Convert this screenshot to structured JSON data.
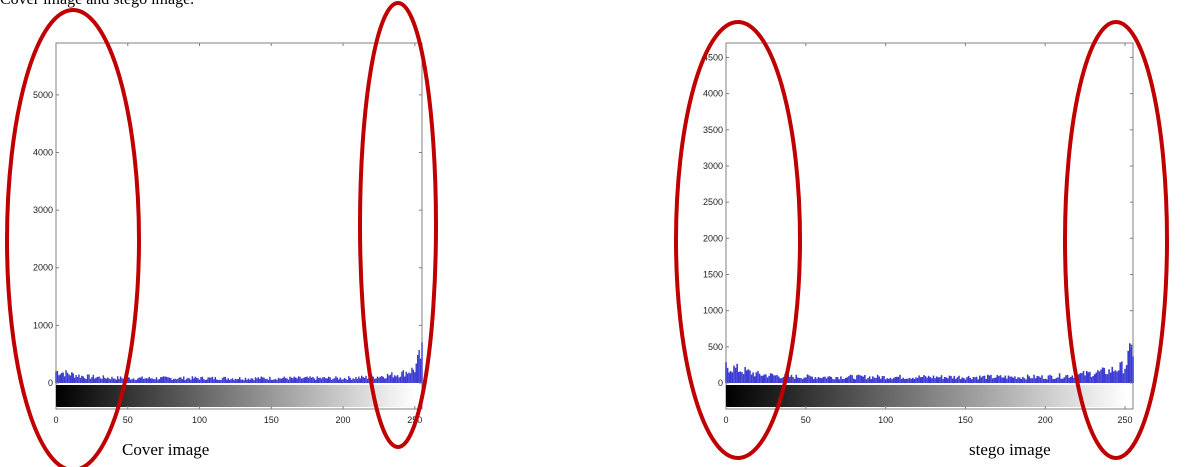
{
  "figure": {
    "top_text": "Cover image and stego image.",
    "captions": [
      "Cover image",
      "stego image"
    ]
  },
  "colors": {
    "bars": "#3b3bd0",
    "ellipse": "#c00000",
    "axis": "#808080"
  },
  "chart_data": [
    {
      "type": "bar",
      "name": "cover-histogram",
      "xlim": [
        0,
        255
      ],
      "ylim": [
        -400,
        5900
      ],
      "xticks": [
        0,
        50,
        100,
        150,
        200,
        250
      ],
      "xtick_labels": [
        "0",
        "50",
        "100",
        "150",
        "200",
        "250"
      ],
      "yticks": [
        0,
        1000,
        2000,
        3000,
        4000,
        5000
      ],
      "ytick_labels": [
        "0",
        "1000",
        "2000",
        "3000",
        "4000",
        "5000"
      ],
      "grayscale_bar": true,
      "grid": false,
      "series": [
        {
          "bins": [
            0,
            20,
            40,
            60,
            200,
            220,
            240,
            250,
            252,
            255
          ],
          "values": [
            220,
            120,
            95,
            90,
            90,
            110,
            170,
            260,
            400,
            560
          ]
        }
      ]
    },
    {
      "type": "bar",
      "name": "stego-histogram",
      "xlim": [
        0,
        255
      ],
      "ylim": [
        -400,
        4700
      ],
      "xticks": [
        0,
        50,
        100,
        150,
        200,
        250
      ],
      "xtick_labels": [
        "0",
        "50",
        "100",
        "150",
        "200",
        "250"
      ],
      "yticks": [
        0,
        500,
        1000,
        1500,
        2000,
        2500,
        3000,
        3500,
        4000,
        4500
      ],
      "ytick_labels": [
        "0",
        "500",
        "1000",
        "1500",
        "2000",
        "2500",
        "3000",
        "3500",
        "4000",
        "4500"
      ],
      "grayscale_bar": true,
      "grid": false,
      "series": [
        {
          "bins": [
            0,
            20,
            40,
            60,
            200,
            220,
            240,
            250,
            252,
            255
          ],
          "values": [
            250,
            130,
            95,
            90,
            90,
            120,
            180,
            250,
            380,
            520
          ]
        }
      ]
    }
  ]
}
